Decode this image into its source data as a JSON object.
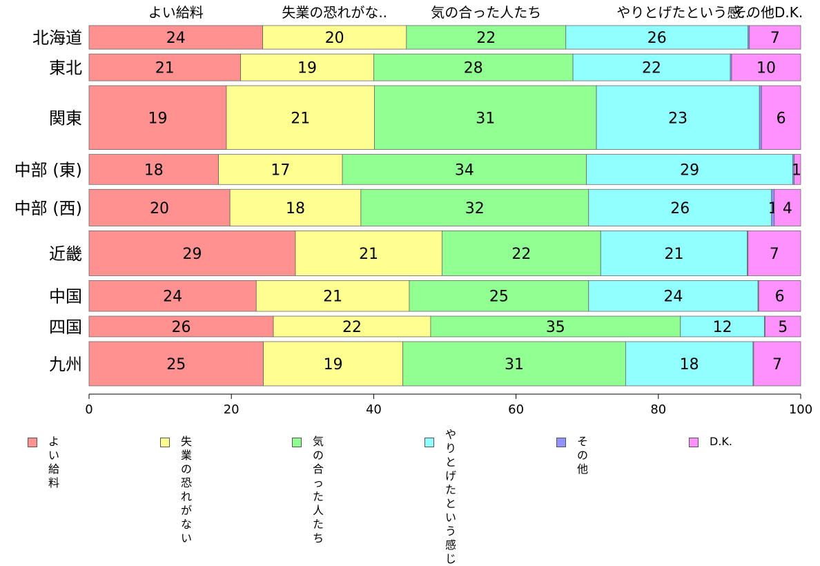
{
  "chart_data": {
    "type": "bar",
    "orientation": "horizontal",
    "stacked": true,
    "xlim": [
      0,
      100
    ],
    "xticks": [
      0,
      20,
      40,
      60,
      80,
      100
    ],
    "top_labels": [
      "よい給料",
      "失業の恐れがな..",
      "気の合った人たち",
      "やりとげたという感..",
      "その他",
      "D.K."
    ],
    "categories": [
      "北海道",
      "東北",
      "関東",
      "中部 (東)",
      "中部 (西)",
      "近畿",
      "中国",
      "四国",
      "九州"
    ],
    "bar_weights": [
      0.72,
      0.82,
      1.95,
      0.92,
      1.12,
      1.37,
      0.94,
      0.63,
      1.35
    ],
    "series": [
      {
        "name": "よい給料",
        "color": "#ff9191",
        "values": [
          24.4,
          21.3,
          19.3,
          18.2,
          19.8,
          29.0,
          23.5,
          25.9,
          24.5
        ]
      },
      {
        "name": "失業の恐れがない",
        "color": "#ffff91",
        "values": [
          20.2,
          18.7,
          20.8,
          17.4,
          18.4,
          20.6,
          21.5,
          22.1,
          19.6
        ]
      },
      {
        "name": "気の合った人たち",
        "color": "#91ff91",
        "values": [
          22.4,
          28.0,
          31.2,
          34.3,
          32.0,
          22.3,
          25.2,
          35.1,
          31.3
        ]
      },
      {
        "name": "やりとげたという感じ",
        "color": "#91ffff",
        "values": [
          25.6,
          22.1,
          22.9,
          29.0,
          25.7,
          20.6,
          23.8,
          11.8,
          17.9
        ]
      },
      {
        "name": "その他",
        "color": "#9191ff",
        "values": [
          0.2,
          0.2,
          0.3,
          0.2,
          0.4,
          0.1,
          0.1,
          0.1,
          0.1
        ]
      },
      {
        "name": "D.K.",
        "color": "#ff91ff",
        "values": [
          7.2,
          9.7,
          5.5,
          0.9,
          3.7,
          7.4,
          5.9,
          5.0,
          6.6
        ]
      }
    ],
    "data_labels": [
      [
        "24",
        "20",
        "22",
        "26",
        "",
        "7"
      ],
      [
        "21",
        "19",
        "28",
        "22",
        "",
        "10"
      ],
      [
        "19",
        "21",
        "31",
        "23",
        "",
        "6"
      ],
      [
        "18",
        "17",
        "34",
        "29",
        "",
        "1"
      ],
      [
        "20",
        "18",
        "32",
        "26",
        "1",
        "4"
      ],
      [
        "29",
        "21",
        "22",
        "21",
        "",
        "7"
      ],
      [
        "24",
        "21",
        "25",
        "24",
        "",
        "6"
      ],
      [
        "26",
        "22",
        "35",
        "12",
        "",
        "5"
      ],
      [
        "25",
        "19",
        "31",
        "18",
        "",
        "7"
      ]
    ],
    "legend": {
      "position": "bottom",
      "items": [
        "よい給料",
        "失業の恐れがない",
        "気の合った人たち",
        "やりとげた\nという感じ",
        "その他",
        "D.K."
      ]
    }
  }
}
